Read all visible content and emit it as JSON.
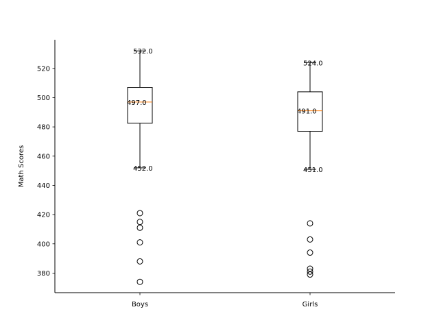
{
  "chart_data": {
    "type": "box",
    "title": "",
    "xlabel": "",
    "ylabel": "Math Scores",
    "ylim": [
      366.6,
      539.6
    ],
    "yticks": [
      380,
      400,
      420,
      440,
      460,
      480,
      500,
      520
    ],
    "grid": false,
    "categories": [
      "Boys",
      "Girls"
    ],
    "boxes": [
      {
        "category": "Boys",
        "whisker_low": 452.0,
        "q1": 482.5,
        "median": 497.0,
        "q3": 507.0,
        "whisker_high": 532.0,
        "outliers": [
          421,
          415,
          411,
          401,
          388,
          374
        ],
        "labels": {
          "max": "532.0",
          "median": "497.0",
          "min": "452.0"
        }
      },
      {
        "category": "Girls",
        "whisker_low": 451.0,
        "q1": 477.0,
        "median": 491.0,
        "q3": 504.0,
        "whisker_high": 524.0,
        "outliers": [
          414,
          403,
          394,
          383,
          381,
          379
        ],
        "labels": {
          "max": "524.0",
          "median": "491.0",
          "min": "451.0"
        }
      }
    ],
    "colors": {
      "box": "#000000",
      "median": "#ff7f0e",
      "outlier": "#000000"
    }
  }
}
